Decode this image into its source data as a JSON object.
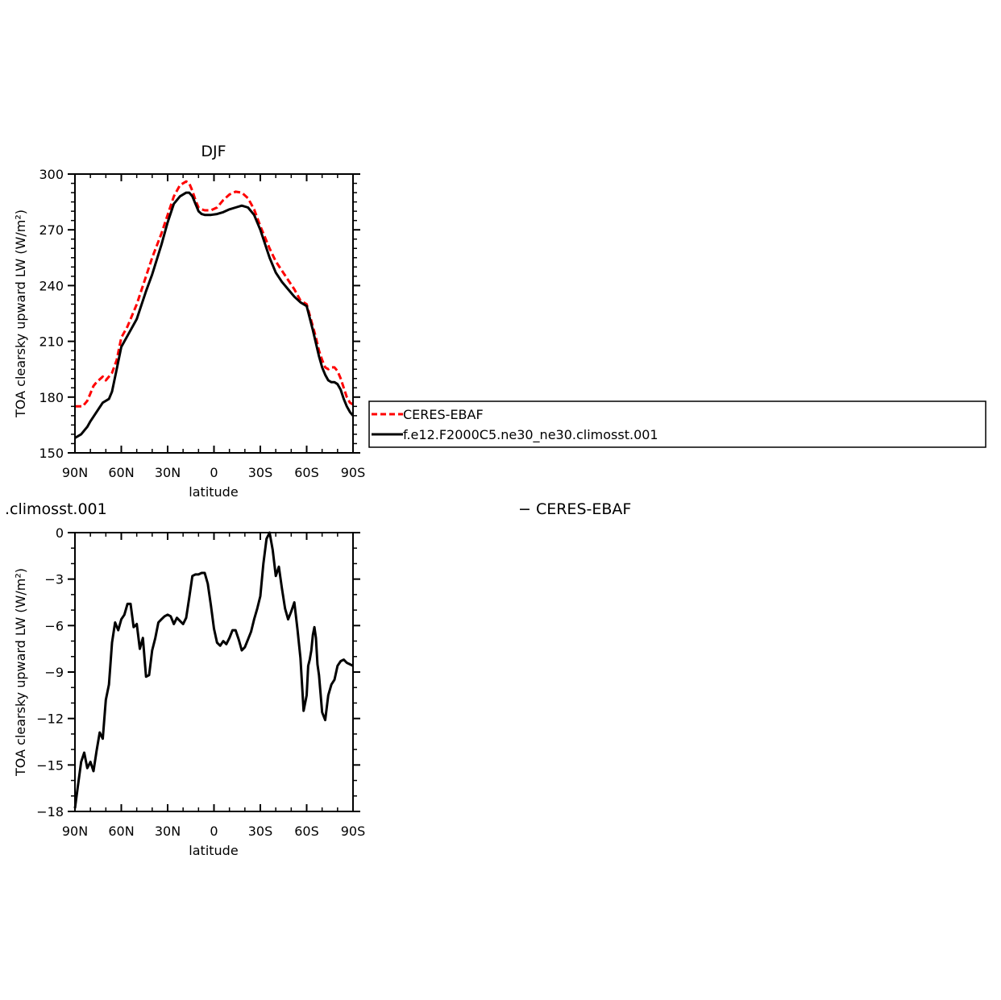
{
  "chart_data": [
    {
      "type": "line",
      "title": "DJF",
      "xlabel": "latitude",
      "ylabel": "TOA clearsky upward LW (W/m²)",
      "xlim": [
        -90,
        90
      ],
      "ylim": [
        150,
        300
      ],
      "xticks": [
        -90,
        -60,
        -30,
        0,
        30,
        60,
        90
      ],
      "xtick_labels": [
        "90N",
        "60N",
        "30N",
        "0",
        "30S",
        "60S",
        "90S"
      ],
      "yticks": [
        150,
        180,
        210,
        240,
        270,
        300
      ],
      "ytick_labels": [
        "150",
        "180",
        "210",
        "240",
        "270",
        "300"
      ],
      "legend": {
        "placement": "right",
        "entries": [
          "CERES-EBAF",
          "f.e12.F2000C5.ne30_ne30.climosst.001"
        ]
      },
      "series": [
        {
          "name": "CERES-EBAF",
          "color": "#ff0000",
          "style": "dashed",
          "x": [
            -90,
            -85,
            -82,
            -80,
            -78,
            -76,
            -72,
            -70,
            -66,
            -63,
            -60,
            -56,
            -50,
            -44,
            -40,
            -34,
            -30,
            -26,
            -22,
            -18,
            -16,
            -14,
            -12,
            -10,
            -8,
            -6,
            -2,
            2,
            6,
            10,
            14,
            18,
            22,
            26,
            30,
            36,
            40,
            44,
            48,
            52,
            56,
            60,
            64,
            66,
            68,
            70,
            72,
            74,
            76,
            78,
            80,
            82,
            84,
            86,
            88,
            90
          ],
          "y": [
            175,
            175,
            178,
            182,
            186,
            188,
            191,
            189,
            193,
            200,
            212,
            218,
            230,
            245,
            255,
            268,
            278,
            288,
            294,
            296,
            295,
            291,
            286,
            282,
            281,
            280.5,
            280.5,
            282,
            286,
            289,
            290.5,
            290,
            287,
            281,
            272,
            260,
            253,
            248,
            243,
            238,
            232,
            230,
            218,
            212,
            205,
            200,
            196,
            195,
            196,
            196,
            194,
            190,
            185,
            180,
            177,
            176
          ]
        },
        {
          "name": "f.e12.F2000C5.ne30_ne30.climosst.001",
          "color": "#000000",
          "style": "solid",
          "x": [
            -90,
            -86,
            -82,
            -80,
            -76,
            -72,
            -68,
            -66,
            -63,
            -60,
            -56,
            -50,
            -44,
            -40,
            -34,
            -30,
            -26,
            -22,
            -18,
            -16,
            -14,
            -12,
            -10,
            -8,
            -6,
            -2,
            2,
            6,
            10,
            14,
            18,
            22,
            26,
            30,
            36,
            40,
            44,
            48,
            52,
            56,
            60,
            64,
            66,
            68,
            70,
            72,
            74,
            76,
            78,
            80,
            82,
            84,
            86,
            88,
            90
          ],
          "y": [
            158,
            160,
            164,
            167,
            172,
            177,
            179,
            183,
            195,
            207,
            213,
            222,
            237,
            246,
            262,
            274,
            284,
            288,
            290,
            290,
            288,
            284,
            280,
            278.5,
            278,
            278,
            278.5,
            279.5,
            281,
            282,
            283,
            282,
            278,
            270,
            255,
            247,
            242,
            238,
            234,
            231,
            229,
            216,
            209,
            202,
            196,
            192,
            189,
            188,
            188,
            187,
            184,
            179,
            175,
            172,
            170
          ]
        }
      ]
    },
    {
      "type": "line",
      "title": ".climosst.001",
      "subtitle": "− CERES-EBAF",
      "xlabel": "latitude",
      "ylabel": "TOA clearsky upward LW (W/m²)",
      "xlim": [
        -90,
        90
      ],
      "ylim": [
        -18,
        0
      ],
      "xticks": [
        -90,
        -60,
        -30,
        0,
        30,
        60,
        90
      ],
      "xtick_labels": [
        "90N",
        "60N",
        "30N",
        "0",
        "30S",
        "60S",
        "90S"
      ],
      "yticks": [
        -18,
        -15,
        -12,
        -9,
        -6,
        -3,
        0
      ],
      "ytick_labels": [
        "−18",
        "−15",
        "−12",
        "−9",
        "−6",
        "−3",
        "0"
      ],
      "series": [
        {
          "name": "",
          "color": "#000000",
          "style": "solid",
          "x": [
            -90,
            -88,
            -86,
            -84,
            -82,
            -80,
            -78,
            -76,
            -74,
            -72,
            -70,
            -68,
            -66,
            -64,
            -62,
            -60,
            -58,
            -56,
            -54,
            -52,
            -50,
            -48,
            -46,
            -44,
            -42,
            -40,
            -38,
            -36,
            -34,
            -32,
            -30,
            -28,
            -26,
            -24,
            -22,
            -20,
            -18,
            -16,
            -14,
            -12,
            -10,
            -8,
            -6,
            -4,
            -2,
            0,
            2,
            4,
            6,
            8,
            10,
            12,
            14,
            16,
            18,
            20,
            22,
            24,
            26,
            28,
            30,
            32,
            34,
            36,
            38,
            40,
            42,
            44,
            46,
            48,
            50,
            52,
            54,
            56,
            58,
            60,
            61,
            62,
            63,
            64,
            65,
            66,
            67,
            68,
            70,
            72,
            74,
            76,
            78,
            80,
            82,
            84,
            86,
            88,
            90
          ],
          "y": [
            -17.8,
            -16.3,
            -14.8,
            -14.2,
            -15.2,
            -14.8,
            -15.4,
            -14.1,
            -12.9,
            -13.3,
            -10.8,
            -9.8,
            -7.1,
            -5.8,
            -6.3,
            -5.6,
            -5.3,
            -4.6,
            -4.6,
            -6.1,
            -5.9,
            -7.5,
            -6.8,
            -9.3,
            -9.2,
            -7.6,
            -6.8,
            -5.8,
            -5.6,
            -5.4,
            -5.3,
            -5.4,
            -5.9,
            -5.5,
            -5.7,
            -5.9,
            -5.5,
            -4.2,
            -2.8,
            -2.7,
            -2.7,
            -2.6,
            -2.6,
            -3.3,
            -4.7,
            -6.2,
            -7.1,
            -7.3,
            -7.0,
            -7.2,
            -6.8,
            -6.3,
            -6.3,
            -6.9,
            -7.6,
            -7.4,
            -6.9,
            -6.4,
            -5.6,
            -4.9,
            -4.1,
            -2.0,
            -0.4,
            0.0,
            -1.1,
            -2.8,
            -2.2,
            -3.6,
            -4.9,
            -5.6,
            -5.1,
            -4.5,
            -6.2,
            -8.1,
            -11.5,
            -10.5,
            -8.6,
            -8.2,
            -7.6,
            -6.6,
            -6.1,
            -6.8,
            -8.5,
            -9.2,
            -11.6,
            -12.1,
            -10.5,
            -9.8,
            -9.5,
            -8.6,
            -8.3,
            -8.2,
            -8.4,
            -8.5,
            -8.6
          ]
        }
      ]
    }
  ]
}
